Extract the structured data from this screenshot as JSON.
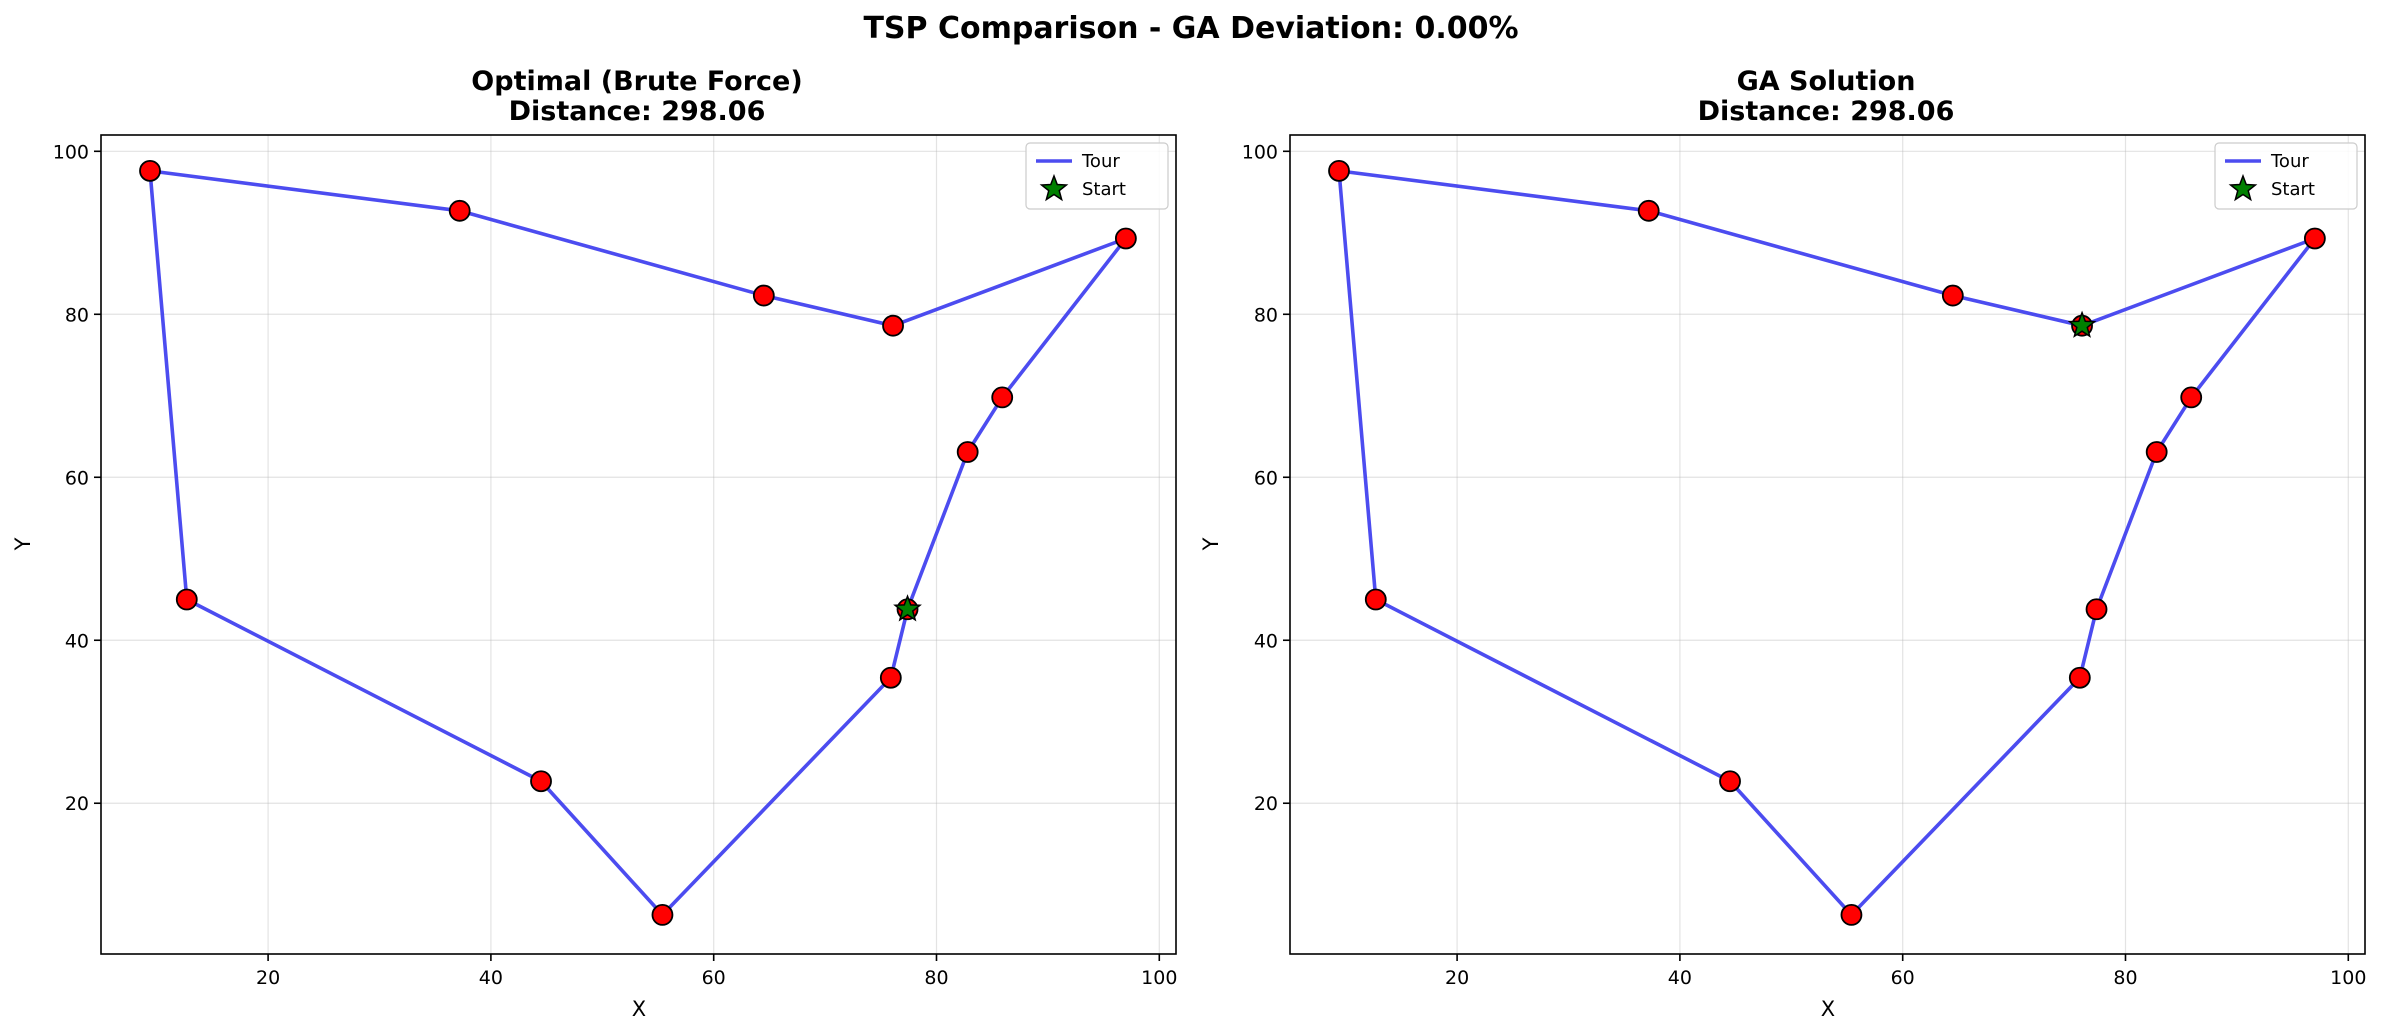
{
  "figure": {
    "suptitle": "TSP Comparison - GA Deviation: 0.00%"
  },
  "colors": {
    "tour": "#3333ee",
    "city_fill": "#ff0000",
    "start_fill": "#008000",
    "edge": "#000000"
  },
  "chart_data": [
    {
      "type": "line",
      "title_line1": "Optimal (Brute Force)",
      "title_line2": "Distance: 298.06",
      "xlabel": "X",
      "ylabel": "Y",
      "xlim": [
        5,
        101.5
      ],
      "ylim": [
        1.5,
        102
      ],
      "xticks": [
        20,
        40,
        60,
        80,
        100
      ],
      "yticks": [
        20,
        40,
        60,
        80,
        100
      ],
      "grid": true,
      "legend_position": "top-right",
      "legend": [
        "Tour",
        "Start"
      ],
      "cities": [
        {
          "x": 77.4,
          "y": 43.8
        },
        {
          "x": 82.8,
          "y": 63.1
        },
        {
          "x": 85.9,
          "y": 69.8
        },
        {
          "x": 97.0,
          "y": 89.3
        },
        {
          "x": 76.1,
          "y": 78.6
        },
        {
          "x": 64.5,
          "y": 82.3
        },
        {
          "x": 37.2,
          "y": 92.7
        },
        {
          "x": 9.4,
          "y": 97.6
        },
        {
          "x": 12.7,
          "y": 45.0
        },
        {
          "x": 44.5,
          "y": 22.7
        },
        {
          "x": 55.4,
          "y": 6.3
        },
        {
          "x": 75.9,
          "y": 35.4
        }
      ],
      "start": {
        "x": 77.4,
        "y": 43.8
      }
    },
    {
      "type": "line",
      "title_line1": "GA Solution",
      "title_line2": "Distance: 298.06",
      "xlabel": "X",
      "ylabel": "Y",
      "xlim": [
        5,
        101.5
      ],
      "ylim": [
        1.5,
        102
      ],
      "xticks": [
        20,
        40,
        60,
        80,
        100
      ],
      "yticks": [
        20,
        40,
        60,
        80,
        100
      ],
      "grid": true,
      "legend_position": "top-right",
      "legend": [
        "Tour",
        "Start"
      ],
      "cities": [
        {
          "x": 76.1,
          "y": 78.6
        },
        {
          "x": 97.0,
          "y": 89.3
        },
        {
          "x": 85.9,
          "y": 69.8
        },
        {
          "x": 82.8,
          "y": 63.1
        },
        {
          "x": 77.4,
          "y": 43.8
        },
        {
          "x": 75.9,
          "y": 35.4
        },
        {
          "x": 55.4,
          "y": 6.3
        },
        {
          "x": 44.5,
          "y": 22.7
        },
        {
          "x": 12.7,
          "y": 45.0
        },
        {
          "x": 9.4,
          "y": 97.6
        },
        {
          "x": 37.2,
          "y": 92.7
        },
        {
          "x": 64.5,
          "y": 82.3
        }
      ],
      "start": {
        "x": 76.1,
        "y": 78.6
      }
    }
  ]
}
